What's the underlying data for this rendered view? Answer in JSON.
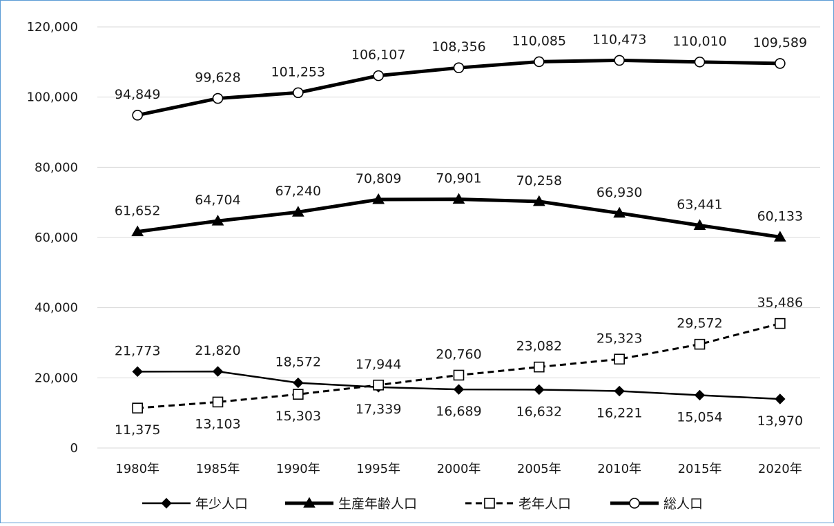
{
  "chart_data": {
    "type": "line",
    "title": "",
    "xlabel": "",
    "ylabel": "",
    "categories": [
      "1980年",
      "1985年",
      "1990年",
      "1995年",
      "2000年",
      "2005年",
      "2010年",
      "2015年",
      "2020年"
    ],
    "ylim": [
      0,
      120000
    ],
    "yticks": [
      0,
      20000,
      40000,
      60000,
      80000,
      100000,
      120000
    ],
    "ytick_labels": [
      "0",
      "20,000",
      "40,000",
      "60,000",
      "80,000",
      "100,000",
      "120,000"
    ],
    "grid": true,
    "legend_position": "bottom",
    "series": [
      {
        "key": "youth",
        "name": "年少人口",
        "values": [
          21773,
          21820,
          18572,
          17339,
          16689,
          16632,
          16221,
          15054,
          13970
        ],
        "labels": [
          "21,773",
          "21,820",
          "18,572",
          "17,339",
          "16,689",
          "16,632",
          "16,221",
          "15,054",
          "13,970"
        ],
        "label_side": [
          "above",
          "above",
          "above",
          "below",
          "below",
          "below",
          "below",
          "below",
          "below"
        ],
        "line_style": "solid",
        "marker": "diamond-filled",
        "color": "#000000"
      },
      {
        "key": "working",
        "name": "生産年齢人口",
        "values": [
          61652,
          64704,
          67240,
          70809,
          70901,
          70258,
          66930,
          63441,
          60133
        ],
        "labels": [
          "61,652",
          "64,704",
          "67,240",
          "70,809",
          "70,901",
          "70,258",
          "66,930",
          "63,441",
          "60,133"
        ],
        "label_side": [
          "above",
          "above",
          "above",
          "above",
          "above",
          "above",
          "above",
          "above",
          "above"
        ],
        "line_style": "solid-thick",
        "marker": "triangle-filled",
        "color": "#000000"
      },
      {
        "key": "elderly",
        "name": "老年人口",
        "values": [
          11375,
          13103,
          15303,
          17944,
          20760,
          23082,
          25323,
          29572,
          35486
        ],
        "labels": [
          "11,375",
          "13,103",
          "15,303",
          "17,944",
          "20,760",
          "23,082",
          "25,323",
          "29,572",
          "35,486"
        ],
        "label_side": [
          "below",
          "below",
          "below",
          "above",
          "above",
          "above",
          "above",
          "above",
          "above"
        ],
        "line_style": "dashed",
        "marker": "square-open",
        "color": "#000000"
      },
      {
        "key": "total",
        "name": "総人口",
        "values": [
          94849,
          99628,
          101253,
          106107,
          108356,
          110085,
          110473,
          110010,
          109589
        ],
        "labels": [
          "94,849",
          "99,628",
          "101,253",
          "106,107",
          "108,356",
          "110,085",
          "110,473",
          "110,010",
          "109,589"
        ],
        "label_side": [
          "above",
          "above",
          "above",
          "above",
          "above",
          "above",
          "above",
          "above",
          "above"
        ],
        "line_style": "solid-thick",
        "marker": "circle-open",
        "color": "#000000"
      }
    ]
  },
  "colors": {
    "border": "#5b9bd5",
    "grid": "#d9d9d9",
    "line": "#000000",
    "background": "#ffffff"
  }
}
